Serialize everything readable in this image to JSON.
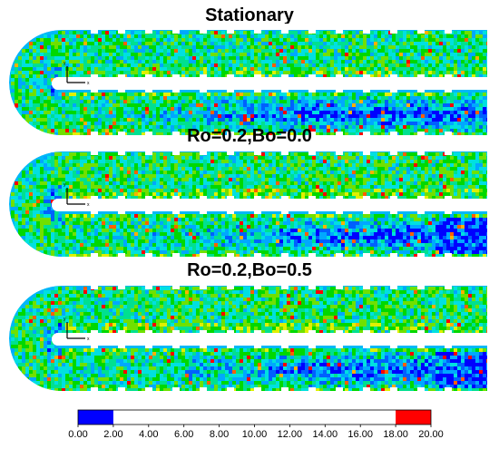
{
  "chart_data": {
    "type": "heatmap",
    "panels": [
      {
        "title": "Stationary"
      },
      {
        "title": "Ro=0.2,Bo=0.0"
      },
      {
        "title": "Ro=0.2,Bo=0.5"
      }
    ],
    "axis_indicator": {
      "x": "x",
      "y": "y"
    },
    "colorbar": {
      "tick_labels": [
        "0.00",
        "2.00",
        "4.00",
        "6.00",
        "8.00",
        "10.00",
        "12.00",
        "14.00",
        "16.00",
        "18.00",
        "20.00"
      ],
      "range": [
        0,
        20
      ],
      "colors": [
        "#0000ff",
        "#0060ff",
        "#00a8ff",
        "#00e0e0",
        "#00e090",
        "#00d800",
        "#70e000",
        "#e0f000",
        "#ffb000",
        "#ff6000",
        "#ff0000"
      ]
    }
  }
}
